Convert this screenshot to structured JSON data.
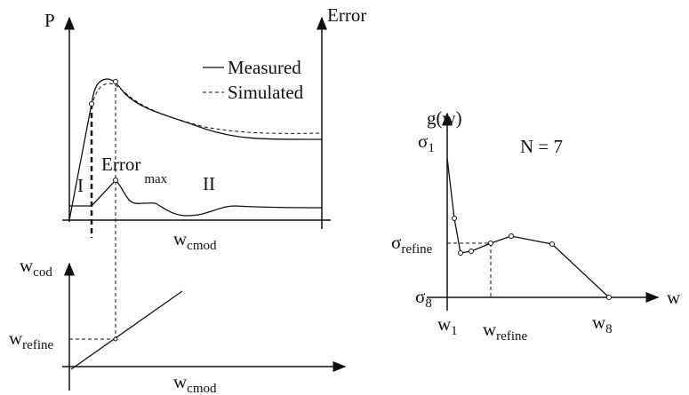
{
  "top_panel": {
    "y_label": "P",
    "y2_label": "Error",
    "legend": [
      "Measured",
      "Simulated"
    ],
    "peak_label": {
      "base": "Error",
      "sub": "max"
    },
    "regions": [
      "I",
      "II"
    ],
    "x_label": {
      "base": "w",
      "sub": "cmod"
    }
  },
  "bottom_panel": {
    "y_label": {
      "base": "w",
      "sub": "cod"
    },
    "refine_label": {
      "base": "w",
      "sub": "refine"
    },
    "x_label": {
      "base": "w",
      "sub": "cmod"
    }
  },
  "right_panel": {
    "y_label": "g(w)",
    "sigma_first": {
      "base": "σ",
      "sub": "1"
    },
    "note": "N = 7",
    "sigma_refine": {
      "base": "σ",
      "sub": "refine"
    },
    "sigma_last": {
      "base": "σ",
      "sub": "8"
    },
    "x_label": "w",
    "w_first": {
      "base": "w",
      "sub": "1"
    },
    "w_refine": {
      "base": "w",
      "sub": "refine"
    },
    "w_last": {
      "base": "w",
      "sub": "8"
    }
  }
}
